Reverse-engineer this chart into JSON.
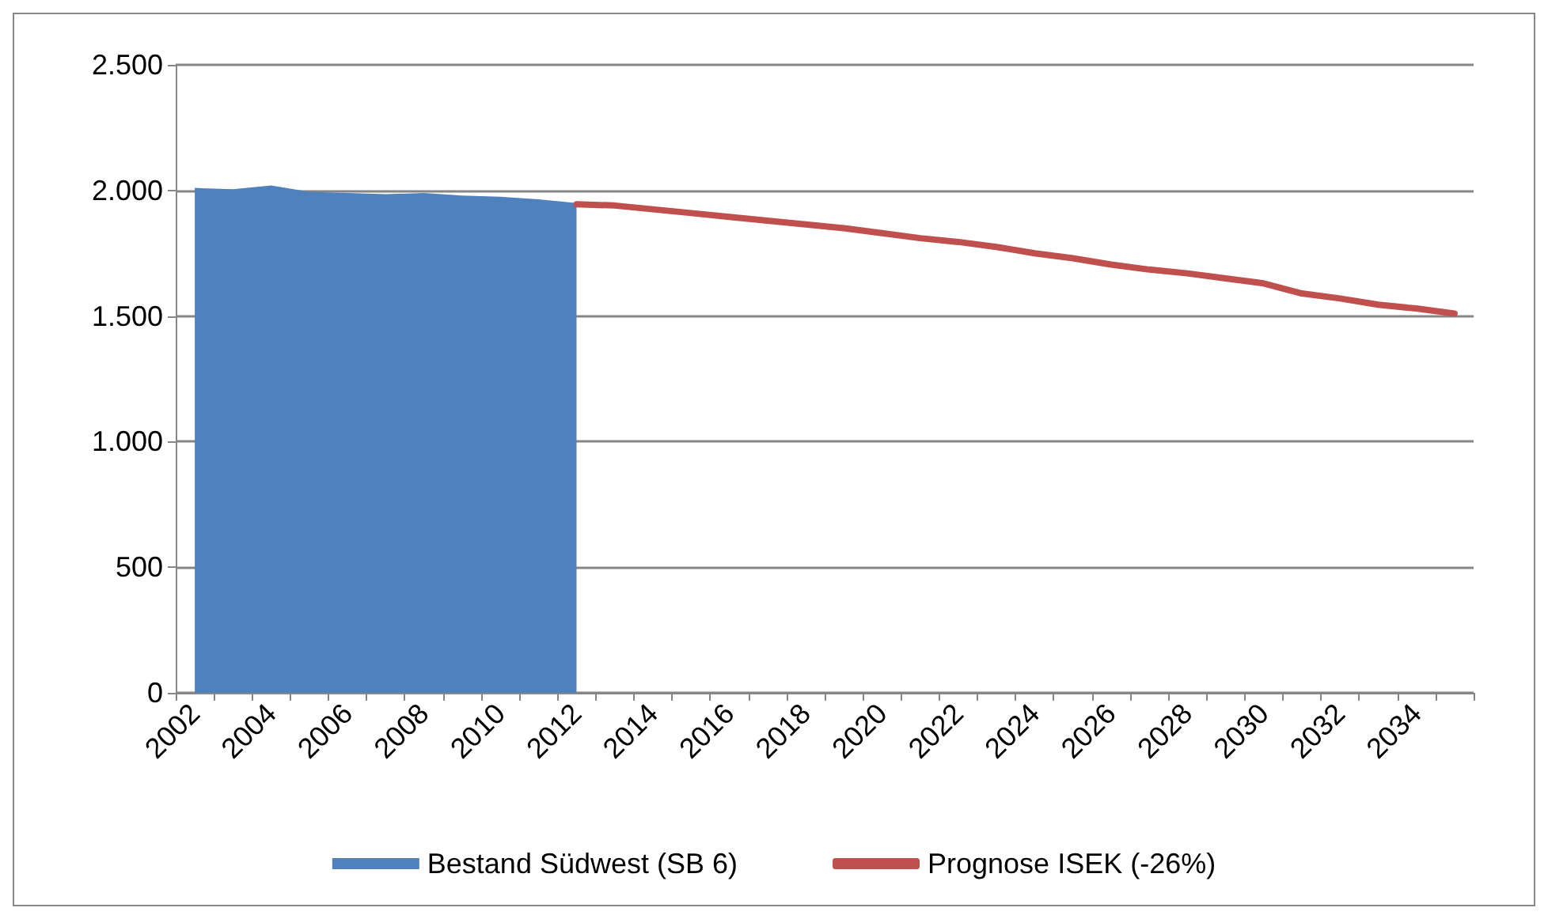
{
  "chart_data": {
    "type": "area",
    "categories": [
      "2002",
      null,
      "2004",
      null,
      "2006",
      null,
      "2008",
      null,
      "2010",
      null,
      "2012",
      null,
      "2014",
      null,
      "2016",
      null,
      "2018",
      null,
      "2020",
      null,
      "2022",
      null,
      "2024",
      null,
      "2026",
      null,
      "2028",
      null,
      "2030",
      null,
      "2032",
      null,
      "2034",
      null
    ],
    "series": [
      {
        "name": "Bestand Südwest (SB 6)",
        "color": "#4f81bd",
        "values": [
          2010,
          2005,
          2020,
          1995,
          1990,
          1985,
          1990,
          1980,
          1975,
          1965,
          1950,
          null,
          null,
          null,
          null,
          null,
          null,
          null,
          null,
          null,
          null,
          null,
          null,
          null,
          null,
          null,
          null,
          null,
          null,
          null,
          null,
          null,
          null,
          null
        ]
      },
      {
        "name": "Prognose ISEK (-26%)",
        "type": "line",
        "color": "#c0504d",
        "values": [
          null,
          null,
          null,
          null,
          null,
          null,
          null,
          null,
          null,
          null,
          1945,
          1940,
          1925,
          1910,
          1895,
          1880,
          1865,
          1850,
          1830,
          1810,
          1795,
          1775,
          1750,
          1730,
          1705,
          1685,
          1670,
          1650,
          1630,
          1590,
          1570,
          1545,
          1530,
          1510
        ]
      }
    ],
    "ylim": [
      0,
      2500
    ],
    "yticks": [
      0,
      500,
      {
        "value": 1000,
        "label": "1.000"
      },
      {
        "value": 1500,
        "label": "1.500"
      },
      {
        "value": 2000,
        "label": "2.000"
      },
      {
        "value": 2500,
        "label": "2.500"
      }
    ],
    "grid": "y",
    "legend": "bottom"
  }
}
